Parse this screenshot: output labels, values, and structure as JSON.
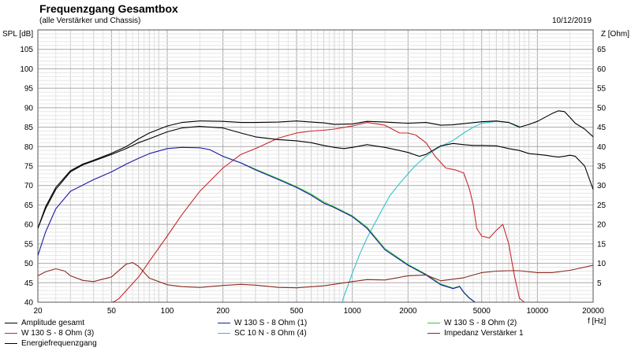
{
  "header": {
    "title": "Frequenzgang Gesamtbox",
    "subtitle": "(alle Verstärker und Chassis)",
    "date": "10/12/2019"
  },
  "chart_data": {
    "type": "line",
    "title": "Frequenzgang Gesamtbox",
    "subtitle": "(alle Verstärker und Chassis)",
    "xlabel": "f [Hz]",
    "ylabel": "SPL [dB]",
    "y2label": "Z [Ohm]",
    "xscale": "log",
    "xlim": [
      20,
      20000
    ],
    "ylim": [
      40,
      110
    ],
    "y2lim": [
      0,
      70
    ],
    "x_ticks": [
      20,
      50,
      100,
      200,
      500,
      1000,
      2000,
      5000,
      10000,
      20000
    ],
    "x_tick_labels": [
      "20",
      "50",
      "100",
      "200",
      "500",
      "1000",
      "2000",
      "5000",
      "10000",
      "20000"
    ],
    "y_ticks": [
      40,
      45,
      50,
      55,
      60,
      65,
      70,
      75,
      80,
      85,
      90,
      95,
      100,
      105
    ],
    "y2_ticks": [
      5,
      10,
      15,
      20,
      25,
      30,
      35,
      40,
      45,
      50,
      55,
      60,
      65
    ],
    "grid": true,
    "legend_position": "bottom",
    "series": [
      {
        "name": "Amplitude gesamt",
        "color": "#000000",
        "axis": "left",
        "x": [
          20,
          22,
          25,
          30,
          35,
          40,
          50,
          60,
          70,
          80,
          100,
          120,
          150,
          200,
          250,
          300,
          400,
          500,
          600,
          700,
          800,
          900,
          1000,
          1200,
          1500,
          1800,
          2000,
          2300,
          2500,
          3000,
          3500,
          4000,
          4500,
          5000,
          6000,
          7000,
          8000,
          9000,
          10000,
          11000,
          12000,
          13000,
          14000,
          15000,
          16000,
          18000,
          20000
        ],
        "values": [
          59,
          64,
          69,
          73.5,
          75.3,
          76.3,
          78,
          79.5,
          81,
          82,
          83.8,
          84.8,
          85.2,
          84.8,
          83.5,
          82.5,
          81.8,
          81.5,
          81,
          80.3,
          79.8,
          79.5,
          79.8,
          80.5,
          79.8,
          79,
          78.5,
          77.5,
          78,
          80.2,
          80.8,
          80.5,
          80.3,
          80.3,
          80.2,
          79.5,
          79,
          78.2,
          78,
          77.8,
          77.5,
          77.3,
          77.5,
          77.8,
          77.5,
          75,
          69
        ]
      },
      {
        "name": "W 130 S - 8 Ohm (1)",
        "color": "#1a1aa8",
        "axis": "left",
        "x": [
          20,
          22,
          25,
          30,
          40,
          50,
          60,
          70,
          80,
          100,
          120,
          150,
          170,
          200,
          250,
          300,
          400,
          500,
          600,
          700,
          800,
          1000,
          1200,
          1500,
          2000,
          2500,
          3000,
          3500,
          3800,
          4000,
          4300,
          4600
        ],
        "values": [
          52,
          58,
          64,
          68.5,
          71.5,
          73.5,
          75.5,
          77,
          78.2,
          79.5,
          79.8,
          79.7,
          79.2,
          77.5,
          75.8,
          74,
          71.5,
          69.5,
          67.5,
          65.5,
          64.3,
          62,
          59,
          53.5,
          49.5,
          47,
          44.5,
          43.5,
          44,
          42.5,
          41,
          40
        ]
      },
      {
        "name": "W 130 S - 8 Ohm (2)",
        "color": "#33cc33",
        "axis": "left",
        "x": [
          200,
          250,
          300,
          400,
          500,
          600,
          700,
          800,
          1000,
          1200,
          1500,
          2000,
          2500,
          3000,
          3500,
          3800,
          4000,
          4300,
          4600
        ],
        "values": [
          77.5,
          75.8,
          74.2,
          71.7,
          69.7,
          67.8,
          65.8,
          64.5,
          62.2,
          59.3,
          53.8,
          49.7,
          47.2,
          44.7,
          43.6,
          44.1,
          42.6,
          41.1,
          40
        ]
      },
      {
        "name": "W 130 S - 8 Ohm (3)",
        "color": "#c8282d",
        "axis": "left",
        "x": [
          50,
          52,
          55,
          60,
          70,
          80,
          100,
          120,
          150,
          200,
          250,
          300,
          400,
          500,
          600,
          700,
          800,
          1000,
          1200,
          1500,
          1800,
          2000,
          2200,
          2500,
          2800,
          3200,
          3600,
          4000,
          4300,
          4500,
          4700,
          5000,
          5500,
          6000,
          6500,
          7000,
          7500,
          8000,
          8500
        ],
        "values": [
          40,
          40.2,
          41,
          43,
          46.5,
          50.5,
          57,
          62.5,
          68.5,
          74.5,
          78,
          79.5,
          82.2,
          83.5,
          84,
          84.2,
          84.5,
          85.3,
          86.2,
          85.5,
          83.5,
          83.5,
          83,
          81,
          77.5,
          74.5,
          74,
          73.2,
          69,
          65,
          59,
          57,
          56.5,
          58.5,
          60,
          55,
          47,
          41,
          40
        ]
      },
      {
        "name": "SC 10 N - 8 Ohm (4)",
        "color": "#33c4c8",
        "axis": "left",
        "x": [
          880,
          900,
          950,
          1000,
          1100,
          1200,
          1400,
          1600,
          1800,
          2000,
          2200,
          2500,
          2800,
          3000,
          3500,
          4000,
          4500,
          5000,
          6000,
          7000,
          8000
        ],
        "values": [
          40,
          41.5,
          44.5,
          47.5,
          52.5,
          56.5,
          62.5,
          67.5,
          70.5,
          73,
          75.2,
          77.5,
          79.2,
          80,
          81.6,
          83.5,
          85,
          86,
          86.5,
          86.2,
          85.2
        ]
      },
      {
        "name": "Impedanz Verstärker 1",
        "color": "#8c2a1f",
        "axis": "right",
        "x": [
          20,
          22,
          25,
          28,
          30,
          35,
          40,
          50,
          60,
          65,
          70,
          80,
          100,
          120,
          150,
          200,
          250,
          300,
          400,
          500,
          700,
          1000,
          1200,
          1500,
          2000,
          2500,
          3000,
          4000,
          5000,
          6000,
          7000,
          8000,
          10000,
          12000,
          15000,
          20000
        ],
        "values": [
          6.8,
          7.8,
          8.6,
          8,
          6.8,
          5.6,
          5.3,
          6.5,
          9.8,
          10.2,
          9.2,
          6.2,
          4.5,
          4,
          3.8,
          4.3,
          4.6,
          4.4,
          3.8,
          3.7,
          4.2,
          5.3,
          5.8,
          5.7,
          6.8,
          7,
          5.5,
          6.3,
          7.6,
          8,
          8.1,
          8.1,
          7.6,
          7.6,
          8.2,
          9.5
        ]
      },
      {
        "name": "Energiefrequenzgang",
        "color": "#000000",
        "axis": "left",
        "x": [
          20,
          22,
          25,
          30,
          35,
          40,
          50,
          60,
          70,
          80,
          100,
          120,
          150,
          200,
          250,
          300,
          400,
          500,
          600,
          700,
          800,
          1000,
          1200,
          1500,
          2000,
          2500,
          3000,
          3500,
          4000,
          5000,
          6000,
          7000,
          8000,
          9000,
          10000,
          12000,
          13000,
          14000,
          15000,
          16000,
          18000,
          20000
        ],
        "values": [
          59,
          64.5,
          69.5,
          73.8,
          75.5,
          76.5,
          78.3,
          80,
          82,
          83.5,
          85.3,
          86.2,
          86.6,
          86.5,
          86.2,
          86.2,
          86.3,
          86.6,
          86.3,
          86.1,
          85.7,
          85.8,
          86.5,
          86.3,
          86,
          86.2,
          85.5,
          85.6,
          85.9,
          86.4,
          86.6,
          86.2,
          85,
          85.7,
          86.5,
          88.5,
          89.2,
          89,
          87.5,
          86,
          84.5,
          82.5
        ]
      }
    ]
  }
}
